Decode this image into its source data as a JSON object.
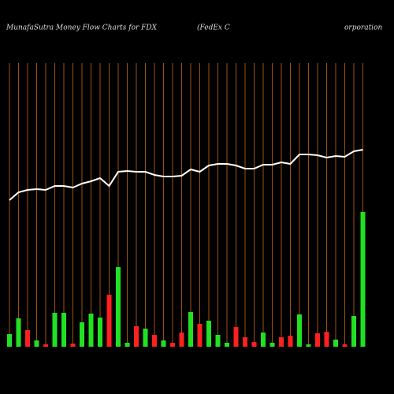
{
  "chart_data": {
    "type": "money-flow",
    "title_parts": [
      "MunafaSutra  Money Flow  Charts for FDX",
      "(FedEx C",
      "orporation"
    ],
    "ylim": [
      0,
      400
    ],
    "grid_color": "#a0520f",
    "series": [
      {
        "name": "price",
        "color": "#ffffff",
        "values": [
          186,
          196,
          199,
          200,
          199,
          204,
          204,
          202,
          207,
          210,
          214,
          204,
          222,
          223,
          222,
          222,
          218,
          216,
          216,
          217,
          225,
          222,
          230,
          232,
          232,
          230,
          226,
          226,
          231,
          231,
          234,
          232,
          244,
          244,
          243,
          240,
          242,
          241,
          248,
          250
        ]
      },
      {
        "name": "flow",
        "values": [
          16,
          36,
          21,
          8,
          3,
          43,
          43,
          4,
          31,
          42,
          37,
          66,
          101,
          5,
          26,
          23,
          15,
          8,
          5,
          18,
          44,
          29,
          33,
          15,
          5,
          25,
          12,
          6,
          18,
          5,
          12,
          14,
          41,
          3,
          17,
          19,
          9,
          3,
          39,
          171
        ],
        "colors": [
          "#22e022",
          "#22e022",
          "#ff2020",
          "#22e022",
          "#ff2020",
          "#22e022",
          "#22e022",
          "#ff2020",
          "#22e022",
          "#22e022",
          "#22e022",
          "#ff2020",
          "#22e022",
          "#22e022",
          "#ff2020",
          "#22e022",
          "#ff2020",
          "#22e022",
          "#ff2020",
          "#ff2020",
          "#22e022",
          "#ff2020",
          "#22e022",
          "#22e022",
          "#22e022",
          "#ff2020",
          "#ff2020",
          "#ff2020",
          "#22e022",
          "#22e022",
          "#ff2020",
          "#ff2020",
          "#22e022",
          "#22e022",
          "#ff2020",
          "#ff2020",
          "#22e022",
          "#ff2020",
          "#22e022",
          "#22e022"
        ]
      }
    ]
  }
}
